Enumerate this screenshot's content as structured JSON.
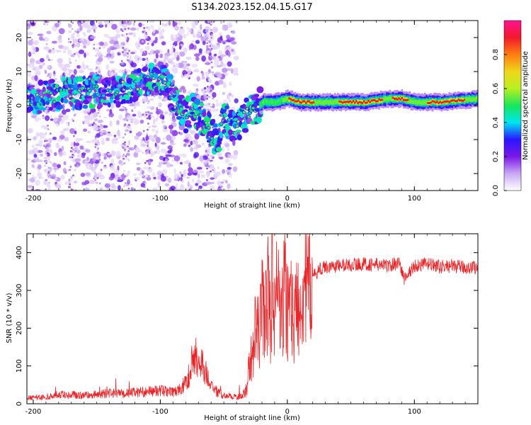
{
  "figure": {
    "title": "S134.2023.152.04.15.G17"
  },
  "chart_data": [
    {
      "type": "heatmap",
      "panel": "spectrogram",
      "xlabel": "Height of straight line (km)",
      "ylabel": "Frequency (Hz)",
      "xlim": [
        -205,
        150
      ],
      "ylim": [
        -25,
        25
      ],
      "xticks": [
        -200,
        -100,
        0,
        100
      ],
      "yticks": [
        -20,
        -10,
        0,
        10,
        20
      ],
      "colorbar": {
        "label": "Normalized spectral amplitude",
        "range": [
          0.0,
          1.0
        ],
        "ticks": [
          0.0,
          0.2,
          0.4,
          0.6,
          0.8
        ],
        "tick_labels": [
          "0.0",
          "0.2",
          "0.4",
          "0.6",
          "0.8"
        ],
        "colormap": [
          "#ffffff",
          "#c9a8f5",
          "#7a18e6",
          "#2a16ff",
          "#00e5f0",
          "#19e65a",
          "#b8f020",
          "#f0d61c",
          "#ff7d12",
          "#f01a2a",
          "#ff1493"
        ]
      },
      "ridge": [
        {
          "x": -200,
          "y": 2
        },
        {
          "x": -190,
          "y": 3
        },
        {
          "x": -180,
          "y": 3
        },
        {
          "x": -170,
          "y": 4
        },
        {
          "x": -160,
          "y": 4
        },
        {
          "x": -150,
          "y": 4
        },
        {
          "x": -140,
          "y": 4
        },
        {
          "x": -130,
          "y": 5
        },
        {
          "x": -120,
          "y": 6
        },
        {
          "x": -110,
          "y": 7
        },
        {
          "x": -100,
          "y": 8
        },
        {
          "x": -95,
          "y": 6
        },
        {
          "x": -90,
          "y": 2
        },
        {
          "x": -85,
          "y": -1
        },
        {
          "x": -80,
          "y": -3
        },
        {
          "x": -75,
          "y": -1
        },
        {
          "x": -70,
          "y": -3
        },
        {
          "x": -65,
          "y": -5
        },
        {
          "x": -60,
          "y": -8
        },
        {
          "x": -55,
          "y": -11
        },
        {
          "x": -50,
          "y": -4
        },
        {
          "x": -45,
          "y": -6
        },
        {
          "x": -40,
          "y": -7
        },
        {
          "x": -35,
          "y": -4
        },
        {
          "x": -30,
          "y": -2
        },
        {
          "x": -25,
          "y": -1
        },
        {
          "x": -20,
          "y": 1
        },
        {
          "x": -10,
          "y": 1
        },
        {
          "x": 0,
          "y": 2
        },
        {
          "x": 10,
          "y": 1
        },
        {
          "x": 20,
          "y": 1
        },
        {
          "x": 40,
          "y": 1
        },
        {
          "x": 60,
          "y": 1
        },
        {
          "x": 80,
          "y": 2
        },
        {
          "x": 90,
          "y": 2
        },
        {
          "x": 100,
          "y": 1
        },
        {
          "x": 120,
          "y": 1
        },
        {
          "x": 150,
          "y": 2
        }
      ]
    },
    {
      "type": "line",
      "panel": "snr",
      "xlabel": "Height of straight line (km)",
      "ylabel": "SNR (10 * v/v)",
      "xlim": [
        -205,
        150
      ],
      "ylim": [
        0,
        450
      ],
      "xticks": [
        -200,
        -100,
        0,
        100
      ],
      "yticks": [
        0,
        100,
        200,
        300,
        400
      ],
      "series_color": "#e8262a",
      "series": [
        {
          "x": [
            -205,
            -190,
            -175,
            -160,
            -150,
            -140,
            -130,
            -120,
            -110,
            -100,
            -90,
            -85,
            -80,
            -77,
            -74,
            -70,
            -65,
            -60,
            -55,
            -50,
            -45,
            -40,
            -35,
            -32,
            -30,
            -27,
            -25,
            -22,
            -20,
            -18,
            -15,
            -13,
            -12,
            -10,
            -7,
            -5,
            -2,
            0,
            3,
            5,
            8,
            10,
            13,
            15,
            20,
            25,
            30,
            40,
            50,
            60,
            70,
            80,
            88,
            92,
            100,
            110,
            120,
            130,
            140,
            150
          ],
          "y": [
            15,
            18,
            25,
            22,
            25,
            28,
            27,
            30,
            32,
            35,
            30,
            35,
            55,
            80,
            130,
            120,
            90,
            45,
            30,
            22,
            20,
            18,
            22,
            40,
            100,
            140,
            200,
            180,
            280,
            220,
            300,
            200,
            360,
            240,
            330,
            200,
            310,
            240,
            300,
            190,
            290,
            260,
            330,
            300,
            335,
            355,
            362,
            365,
            368,
            370,
            368,
            365,
            375,
            330,
            365,
            370,
            362,
            365,
            360,
            362
          ]
        }
      ]
    }
  ]
}
